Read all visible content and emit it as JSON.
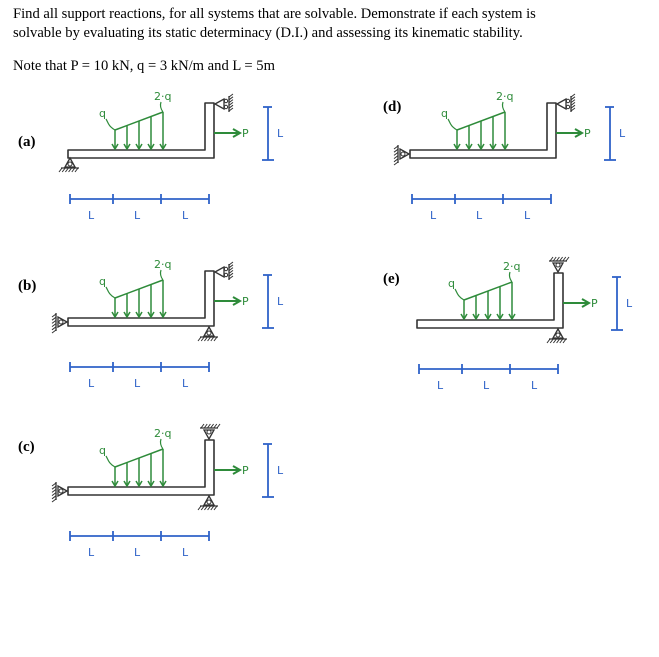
{
  "problem": {
    "line1": "Find all support reactions, for all systems that are solvable. Demonstrate if each system is",
    "line2": "solvable by evaluating its static determinacy (D.I.) and assessing its kinematic stability.",
    "note": "Note that P = 10 kN, q = 3 kN/m and L = 5m"
  },
  "colors": {
    "load": "#2e8b3a",
    "dimension": "#2f63c8",
    "structure": "#333333"
  },
  "diagram_labels": {
    "q": "q",
    "two_q": "2·q",
    "P": "P",
    "L": "L"
  },
  "systems": [
    {
      "label": "(a)",
      "left_support": "ground-pin",
      "top_support": "wall-roller",
      "bottom_support": "none"
    },
    {
      "label": "(b)",
      "left_support": "wall-pin",
      "top_support": "wall-roller",
      "bottom_support": "ground-pin"
    },
    {
      "label": "(c)",
      "left_support": "wall-pin",
      "top_support": "ceiling-pin",
      "bottom_support": "ground-pin"
    },
    {
      "label": "(d)",
      "left_support": "wall-pin",
      "top_support": "wall-roller",
      "bottom_support": "none"
    },
    {
      "label": "(e)",
      "left_support": "none",
      "top_support": "ceiling-pin",
      "bottom_support": "ground-pin"
    }
  ]
}
